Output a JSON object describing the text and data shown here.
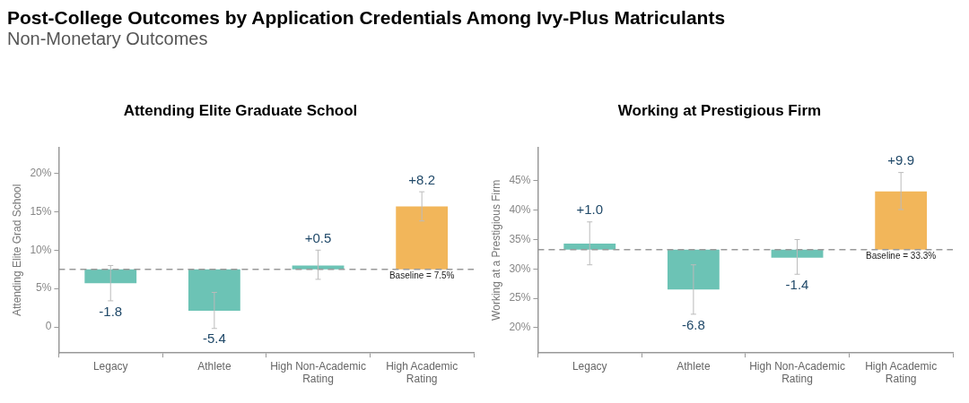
{
  "chart_data": [
    {
      "type": "bar",
      "title": "Attending Elite Graduate School",
      "ylabel": "Attending Elite Grad School",
      "annotations": [
        "Post-College Outcomes by Application Credentials Among Ivy-Plus Matriculants",
        "Non-Monetary Outcomes"
      ],
      "categories": [
        "Legacy",
        "Athlete",
        "High Non-Academic Rating",
        "High Academic Rating"
      ],
      "base": [
        7.5,
        7.5,
        7.5,
        7.5
      ],
      "values": [
        -1.8,
        -5.4,
        0.5,
        8.2
      ],
      "value_labels": [
        "-1.8",
        "-5.4",
        "+0.5",
        "+8.2"
      ],
      "errors": [
        [
          3.4,
          8.0
        ],
        [
          -0.2,
          4.5
        ],
        [
          6.2,
          10.0
        ],
        [
          13.8,
          17.6
        ]
      ],
      "colors": [
        "#6cc3b5",
        "#6cc3b5",
        "#6cc3b5",
        "#f2b65a"
      ],
      "ylim": [
        -3.4,
        23.4
      ],
      "yticks": [
        0,
        {
          "value": 5,
          "label": "5%"
        },
        {
          "value": 10,
          "label": "10%"
        },
        {
          "value": 15,
          "label": "15%"
        },
        {
          "value": 20,
          "label": "20%"
        }
      ],
      "ref_lines": [
        {
          "axis": "y",
          "value": 7.5,
          "label": "Baseline = 7.5%",
          "color": "#999999",
          "line_style": "dashed"
        }
      ],
      "grid": false,
      "legend": false
    },
    {
      "type": "bar",
      "title": "Working at Prestigious Firm",
      "ylabel": "Working at a Prestigious Firm",
      "categories": [
        "Legacy",
        "Athlete",
        "High Non-Academic Rating",
        "High Academic Rating"
      ],
      "base": [
        33.3,
        33.3,
        33.3,
        33.3
      ],
      "values": [
        1.0,
        -6.8,
        -1.4,
        9.9
      ],
      "value_labels": [
        "+1.0",
        "-6.8",
        "-1.4",
        "+9.9"
      ],
      "errors": [
        [
          30.7,
          38.0
        ],
        [
          22.3,
          30.7
        ],
        [
          29.1,
          35.0
        ],
        [
          40.1,
          46.4
        ]
      ],
      "colors": [
        "#6cc3b5",
        "#6cc3b5",
        "#6cc3b5",
        "#f2b65a"
      ],
      "ylim": [
        15.7,
        50.7
      ],
      "yticks": [
        {
          "value": 20,
          "label": "20%"
        },
        {
          "value": 25,
          "label": "25%"
        },
        {
          "value": 30,
          "label": "30%"
        },
        {
          "value": 35,
          "label": "35%"
        },
        {
          "value": 40,
          "label": "40%"
        },
        {
          "value": 45,
          "label": "45%"
        }
      ],
      "ref_lines": [
        {
          "axis": "y",
          "value": 33.3,
          "label": "Baseline = 33.3%",
          "color": "#999999",
          "line_style": "dashed"
        }
      ],
      "grid": false,
      "legend": false
    }
  ]
}
